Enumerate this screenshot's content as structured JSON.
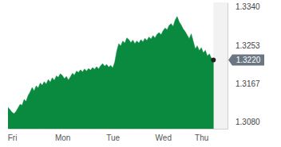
{
  "chart_data": {
    "type": "area",
    "color": "#0a8a3f",
    "grid": false,
    "categories": [
      null,
      null,
      "Fri",
      null,
      null,
      null,
      null,
      null,
      null,
      null,
      null,
      null,
      null,
      null,
      null,
      null,
      null,
      null,
      null,
      null,
      null,
      null,
      null,
      null,
      null,
      null,
      null,
      "Mon",
      null,
      null,
      null,
      null,
      null,
      null,
      null,
      null,
      null,
      null,
      null,
      null,
      null,
      null,
      null,
      null,
      null,
      null,
      null,
      null,
      null,
      null,
      null,
      null,
      "Tue",
      null,
      null,
      null,
      null,
      null,
      null,
      null,
      null,
      null,
      null,
      null,
      null,
      null,
      null,
      null,
      null,
      null,
      null,
      null,
      null,
      null,
      null,
      null,
      null,
      "Wed",
      null,
      null,
      null,
      null,
      null,
      null,
      null,
      null,
      null,
      null,
      null,
      null,
      null,
      null,
      null,
      null,
      null,
      null,
      "Thu",
      null,
      null,
      null,
      null,
      null,
      null,
      null,
      null,
      null,
      null,
      null,
      null,
      null
    ],
    "values": [
      1.3113,
      1.3108,
      1.3102,
      1.3099,
      1.3104,
      1.3112,
      1.312,
      1.3118,
      1.3131,
      1.3127,
      1.314,
      1.3148,
      1.3158,
      1.315,
      1.3162,
      1.3157,
      1.3168,
      1.3163,
      1.3171,
      1.3166,
      1.3176,
      1.317,
      1.318,
      1.3174,
      1.3184,
      1.3181,
      1.3189,
      1.3185,
      1.3178,
      1.3183,
      1.3175,
      1.3182,
      1.319,
      1.3186,
      1.3195,
      1.3192,
      1.3198,
      1.3193,
      1.32,
      1.3195,
      1.3201,
      1.3197,
      1.3203,
      1.3199,
      1.3205,
      1.32,
      1.3207,
      1.3212,
      1.3206,
      1.321,
      1.3204,
      1.3208,
      1.3202,
      1.3215,
      1.324,
      1.3257,
      1.3252,
      1.3263,
      1.3258,
      1.327,
      1.3266,
      1.3259,
      1.3265,
      1.3257,
      1.3263,
      1.3258,
      1.3266,
      1.3261,
      1.3269,
      1.3264,
      1.3272,
      1.3267,
      1.3275,
      1.327,
      1.3278,
      1.3282,
      1.3277,
      1.3286,
      1.3292,
      1.3288,
      1.3298,
      1.3302,
      1.3296,
      1.331,
      1.3318,
      1.3306,
      1.3299,
      1.329,
      1.3284,
      1.3276,
      1.3268,
      1.3279,
      1.3262,
      1.3245,
      1.3252,
      1.3241,
      1.3248,
      1.3236,
      1.3242,
      1.3229,
      1.3234,
      1.3224,
      1.322,
      null,
      null,
      null,
      null,
      null,
      null,
      null
    ],
    "ylim": [
      1.3065,
      1.335
    ],
    "yticks": [
      {
        "value": 1.308,
        "label": "1.3080"
      },
      1.3167,
      1.3253,
      {
        "value": 1.334,
        "label": "1.3340"
      }
    ],
    "annotations": [
      {
        "text": "1.3220",
        "value": 1.322
      }
    ]
  }
}
